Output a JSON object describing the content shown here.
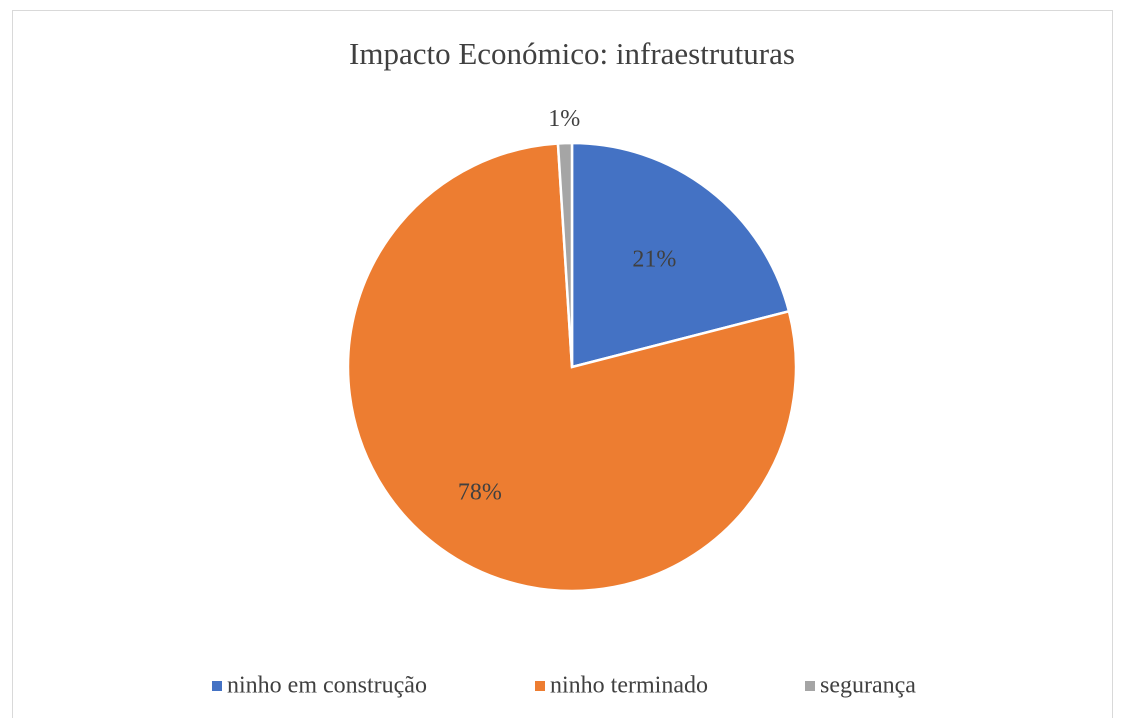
{
  "chart_data": {
    "type": "pie",
    "title": "Impacto Económico: infraestruturas",
    "categories": [
      "ninho em construção",
      "ninho terminado",
      "segurança"
    ],
    "values": [
      21,
      78,
      1
    ],
    "value_labels": [
      "21%",
      "78%",
      "1%"
    ],
    "colors": [
      "#4472c4",
      "#ed7d31",
      "#a5a5a5"
    ],
    "legend": "bottom"
  }
}
